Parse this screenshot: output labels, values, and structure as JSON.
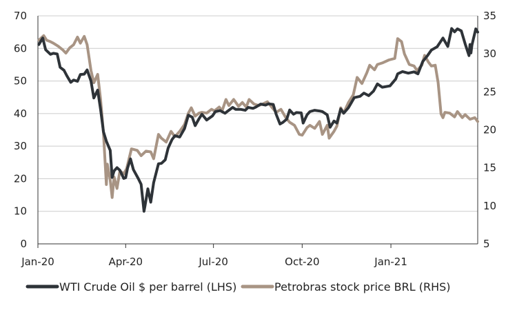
{
  "chart_data": {
    "type": "line",
    "title": "",
    "xlabel": "",
    "x_ticks": [
      "Jan-20",
      "Apr-20",
      "Jul-20",
      "Oct-20",
      "Jan-21"
    ],
    "x_range": [
      "2020-01-01",
      "2021-04-01"
    ],
    "y_left": {
      "label": "",
      "min": 0,
      "max": 70,
      "ticks": [
        0,
        10,
        20,
        30,
        40,
        50,
        60,
        70
      ]
    },
    "y_right": {
      "label": "",
      "min": 5,
      "max": 35,
      "ticks": [
        5,
        10,
        15,
        20,
        25,
        30,
        35
      ]
    },
    "grid": "horizontal",
    "legend_position": "bottom",
    "series": [
      {
        "name": "WTI Crude Oil $ per barrel (LHS)",
        "axis": "left",
        "color": "#2e3338",
        "points": [
          [
            "2020-01-02",
            61.2
          ],
          [
            "2020-01-06",
            63.2
          ],
          [
            "2020-01-09",
            59.6
          ],
          [
            "2020-01-14",
            58.2
          ],
          [
            "2020-01-17",
            58.5
          ],
          [
            "2020-01-21",
            58.3
          ],
          [
            "2020-01-24",
            54.2
          ],
          [
            "2020-01-28",
            53.3
          ],
          [
            "2020-01-31",
            51.6
          ],
          [
            "2020-02-04",
            49.6
          ],
          [
            "2020-02-07",
            50.3
          ],
          [
            "2020-02-11",
            49.9
          ],
          [
            "2020-02-14",
            52.0
          ],
          [
            "2020-02-18",
            52.1
          ],
          [
            "2020-02-21",
            53.4
          ],
          [
            "2020-02-25",
            50.0
          ],
          [
            "2020-02-28",
            44.8
          ],
          [
            "2020-03-03",
            47.2
          ],
          [
            "2020-03-06",
            41.3
          ],
          [
            "2020-03-09",
            34.4
          ],
          [
            "2020-03-12",
            31.5
          ],
          [
            "2020-03-16",
            28.7
          ],
          [
            "2020-03-18",
            20.4
          ],
          [
            "2020-03-20",
            22.4
          ],
          [
            "2020-03-23",
            23.4
          ],
          [
            "2020-03-26",
            22.6
          ],
          [
            "2020-03-30",
            20.1
          ],
          [
            "2020-04-01",
            20.3
          ],
          [
            "2020-04-03",
            23.3
          ],
          [
            "2020-04-06",
            26.1
          ],
          [
            "2020-04-09",
            22.8
          ],
          [
            "2020-04-14",
            20.1
          ],
          [
            "2020-04-17",
            18.3
          ],
          [
            "2020-04-20",
            10.0
          ],
          [
            "2020-04-21",
            11.6
          ],
          [
            "2020-04-24",
            16.9
          ],
          [
            "2020-04-27",
            12.8
          ],
          [
            "2020-04-30",
            18.8
          ],
          [
            "2020-05-05",
            24.6
          ],
          [
            "2020-05-08",
            24.7
          ],
          [
            "2020-05-12",
            25.8
          ],
          [
            "2020-05-15",
            29.4
          ],
          [
            "2020-05-19",
            32.0
          ],
          [
            "2020-05-22",
            33.2
          ],
          [
            "2020-05-27",
            32.8
          ],
          [
            "2020-06-01",
            35.4
          ],
          [
            "2020-06-05",
            39.5
          ],
          [
            "2020-06-09",
            38.9
          ],
          [
            "2020-06-12",
            36.3
          ],
          [
            "2020-06-16",
            38.4
          ],
          [
            "2020-06-19",
            39.8
          ],
          [
            "2020-06-24",
            38.0
          ],
          [
            "2020-06-30",
            39.3
          ],
          [
            "2020-07-03",
            40.6
          ],
          [
            "2020-07-08",
            40.9
          ],
          [
            "2020-07-13",
            40.1
          ],
          [
            "2020-07-16",
            40.8
          ],
          [
            "2020-07-21",
            41.9
          ],
          [
            "2020-07-24",
            41.3
          ],
          [
            "2020-07-29",
            41.3
          ],
          [
            "2020-08-03",
            41.0
          ],
          [
            "2020-08-06",
            41.9
          ],
          [
            "2020-08-11",
            41.6
          ],
          [
            "2020-08-14",
            42.0
          ],
          [
            "2020-08-19",
            42.9
          ],
          [
            "2020-08-24",
            42.6
          ],
          [
            "2020-08-27",
            43.0
          ],
          [
            "2020-09-01",
            42.8
          ],
          [
            "2020-09-04",
            39.8
          ],
          [
            "2020-09-08",
            36.8
          ],
          [
            "2020-09-11",
            37.3
          ],
          [
            "2020-09-15",
            38.3
          ],
          [
            "2020-09-18",
            41.1
          ],
          [
            "2020-09-22",
            39.8
          ],
          [
            "2020-09-25",
            40.3
          ],
          [
            "2020-09-30",
            40.2
          ],
          [
            "2020-10-02",
            37.1
          ],
          [
            "2020-10-06",
            39.6
          ],
          [
            "2020-10-09",
            40.6
          ],
          [
            "2020-10-14",
            41.0
          ],
          [
            "2020-10-19",
            40.8
          ],
          [
            "2020-10-22",
            40.6
          ],
          [
            "2020-10-27",
            39.6
          ],
          [
            "2020-10-30",
            35.8
          ],
          [
            "2020-11-03",
            37.7
          ],
          [
            "2020-11-06",
            37.1
          ],
          [
            "2020-11-10",
            41.4
          ],
          [
            "2020-11-13",
            40.1
          ],
          [
            "2020-11-18",
            41.8
          ],
          [
            "2020-11-24",
            44.9
          ],
          [
            "2020-11-30",
            45.3
          ],
          [
            "2020-12-04",
            46.3
          ],
          [
            "2020-12-09",
            45.5
          ],
          [
            "2020-12-14",
            46.9
          ],
          [
            "2020-12-18",
            49.1
          ],
          [
            "2020-12-23",
            48.1
          ],
          [
            "2020-12-31",
            48.5
          ],
          [
            "2021-01-06",
            50.6
          ],
          [
            "2021-01-08",
            52.2
          ],
          [
            "2021-01-13",
            52.9
          ],
          [
            "2021-01-19",
            52.4
          ],
          [
            "2021-01-25",
            52.8
          ],
          [
            "2021-01-29",
            52.2
          ],
          [
            "2021-02-03",
            56.0
          ],
          [
            "2021-02-08",
            57.8
          ],
          [
            "2021-02-12",
            59.5
          ],
          [
            "2021-02-18",
            60.5
          ],
          [
            "2021-02-24",
            63.2
          ],
          [
            "2021-03-01",
            60.6
          ],
          [
            "2021-03-05",
            66.1
          ],
          [
            "2021-03-08",
            65.1
          ],
          [
            "2021-03-11",
            66.0
          ],
          [
            "2021-03-15",
            65.4
          ],
          [
            "2021-03-19",
            61.4
          ],
          [
            "2021-03-23",
            57.8
          ],
          [
            "2021-03-24",
            61.2
          ],
          [
            "2021-03-25",
            58.6
          ],
          [
            "2021-03-26",
            61.0
          ],
          [
            "2021-03-30",
            66.0
          ],
          [
            "2021-04-01",
            65.0
          ]
        ]
      },
      {
        "name": "Petrobras stock price BRL (RHS)",
        "axis": "right",
        "color": "#a89484",
        "points": [
          [
            "2020-01-02",
            31.8
          ],
          [
            "2020-01-07",
            32.4
          ],
          [
            "2020-01-10",
            31.8
          ],
          [
            "2020-01-14",
            31.6
          ],
          [
            "2020-01-17",
            31.4
          ],
          [
            "2020-01-22",
            31.0
          ],
          [
            "2020-01-27",
            30.5
          ],
          [
            "2020-01-30",
            30.1
          ],
          [
            "2020-02-03",
            30.8
          ],
          [
            "2020-02-07",
            31.2
          ],
          [
            "2020-02-11",
            32.2
          ],
          [
            "2020-02-14",
            31.4
          ],
          [
            "2020-02-18",
            32.3
          ],
          [
            "2020-02-21",
            31.2
          ],
          [
            "2020-02-25",
            27.8
          ],
          [
            "2020-02-28",
            26.2
          ],
          [
            "2020-03-03",
            27.3
          ],
          [
            "2020-03-06",
            24.0
          ],
          [
            "2020-03-09",
            19.6
          ],
          [
            "2020-03-12",
            12.8
          ],
          [
            "2020-03-13",
            15.5
          ],
          [
            "2020-03-16",
            13.4
          ],
          [
            "2020-03-18",
            11.1
          ],
          [
            "2020-03-20",
            13.8
          ],
          [
            "2020-03-23",
            12.3
          ],
          [
            "2020-03-26",
            14.6
          ],
          [
            "2020-03-30",
            14.2
          ],
          [
            "2020-04-02",
            14.9
          ],
          [
            "2020-04-07",
            17.5
          ],
          [
            "2020-04-13",
            17.3
          ],
          [
            "2020-04-17",
            16.6
          ],
          [
            "2020-04-22",
            17.2
          ],
          [
            "2020-04-27",
            17.1
          ],
          [
            "2020-04-30",
            16.2
          ],
          [
            "2020-05-05",
            19.4
          ],
          [
            "2020-05-08",
            18.9
          ],
          [
            "2020-05-13",
            18.4
          ],
          [
            "2020-05-18",
            19.8
          ],
          [
            "2020-05-22",
            19.1
          ],
          [
            "2020-05-27",
            19.8
          ],
          [
            "2020-06-01",
            20.7
          ],
          [
            "2020-06-05",
            22.2
          ],
          [
            "2020-06-08",
            22.9
          ],
          [
            "2020-06-12",
            21.8
          ],
          [
            "2020-06-16",
            22.2
          ],
          [
            "2020-06-19",
            22.3
          ],
          [
            "2020-06-24",
            22.2
          ],
          [
            "2020-06-29",
            22.7
          ],
          [
            "2020-07-02",
            22.5
          ],
          [
            "2020-07-07",
            23.0
          ],
          [
            "2020-07-10",
            22.5
          ],
          [
            "2020-07-14",
            24.0
          ],
          [
            "2020-07-17",
            23.2
          ],
          [
            "2020-07-22",
            24.0
          ],
          [
            "2020-07-27",
            23.1
          ],
          [
            "2020-07-31",
            23.6
          ],
          [
            "2020-08-04",
            23.0
          ],
          [
            "2020-08-07",
            24.0
          ],
          [
            "2020-08-12",
            23.4
          ],
          [
            "2020-08-17",
            23.2
          ],
          [
            "2020-08-21",
            23.4
          ],
          [
            "2020-08-26",
            23.7
          ],
          [
            "2020-08-31",
            22.9
          ],
          [
            "2020-09-04",
            22.3
          ],
          [
            "2020-09-09",
            22.7
          ],
          [
            "2020-09-14",
            21.6
          ],
          [
            "2020-09-18",
            21.0
          ],
          [
            "2020-09-23",
            20.6
          ],
          [
            "2020-09-28",
            19.4
          ],
          [
            "2020-10-01",
            19.3
          ],
          [
            "2020-10-06",
            20.3
          ],
          [
            "2020-10-09",
            20.6
          ],
          [
            "2020-10-14",
            20.2
          ],
          [
            "2020-10-19",
            21.1
          ],
          [
            "2020-10-22",
            19.4
          ],
          [
            "2020-10-27",
            20.6
          ],
          [
            "2020-10-29",
            18.9
          ],
          [
            "2020-11-03",
            19.8
          ],
          [
            "2020-11-06",
            20.5
          ],
          [
            "2020-11-10",
            22.9
          ],
          [
            "2020-11-13",
            22.2
          ],
          [
            "2020-11-18",
            23.6
          ],
          [
            "2020-11-23",
            24.6
          ],
          [
            "2020-11-27",
            26.9
          ],
          [
            "2020-12-02",
            26.1
          ],
          [
            "2020-12-07",
            27.5
          ],
          [
            "2020-12-10",
            28.5
          ],
          [
            "2020-12-15",
            27.9
          ],
          [
            "2020-12-18",
            28.6
          ],
          [
            "2020-12-23",
            28.8
          ],
          [
            "2020-12-30",
            29.2
          ],
          [
            "2021-01-05",
            29.4
          ],
          [
            "2021-01-08",
            32.0
          ],
          [
            "2021-01-12",
            31.6
          ],
          [
            "2021-01-15",
            30.0
          ],
          [
            "2021-01-20",
            28.6
          ],
          [
            "2021-01-25",
            28.4
          ],
          [
            "2021-01-28",
            27.8
          ],
          [
            "2021-02-02",
            28.5
          ],
          [
            "2021-02-05",
            29.8
          ],
          [
            "2021-02-09",
            28.9
          ],
          [
            "2021-02-12",
            28.4
          ],
          [
            "2021-02-16",
            28.5
          ],
          [
            "2021-02-19",
            26.2
          ],
          [
            "2021-02-22",
            22.1
          ],
          [
            "2021-02-24",
            21.6
          ],
          [
            "2021-02-26",
            22.3
          ],
          [
            "2021-03-03",
            22.2
          ],
          [
            "2021-03-08",
            21.7
          ],
          [
            "2021-03-11",
            22.4
          ],
          [
            "2021-03-16",
            21.6
          ],
          [
            "2021-03-19",
            22.0
          ],
          [
            "2021-03-24",
            21.4
          ],
          [
            "2021-03-29",
            21.6
          ],
          [
            "2021-04-01",
            21.1
          ]
        ]
      }
    ]
  }
}
